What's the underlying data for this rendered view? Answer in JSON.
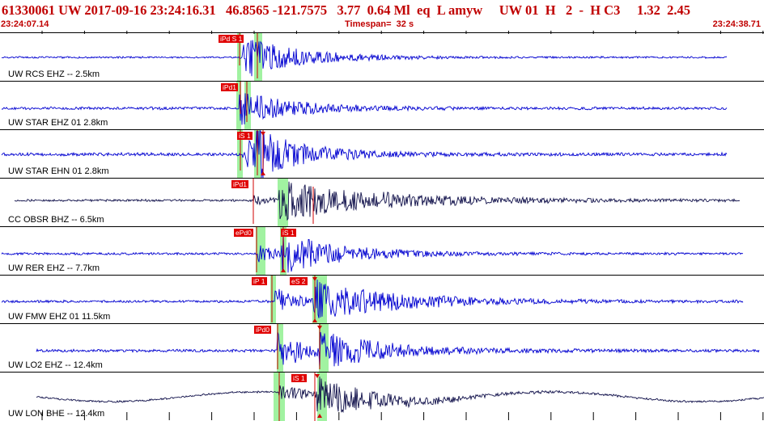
{
  "header": {
    "title": "61330061 UW 2017-09-16 23:24:16.31   46.8565 -121.7575   3.77  0.64 Ml  eq  L amyw     UW 01  H   2  -  H C3     1.32  2.45",
    "start_time": "23:24:07.14",
    "timespan": "Timespan=  32 s",
    "end_time": "23:24:38.71"
  },
  "colors": {
    "title": "#c00000",
    "trace_blue": "#0000d0",
    "trace_navy": "#10104a",
    "pick_label_bg": "#e00000",
    "pick_window": "#90f090",
    "pick_line": "#d00000"
  },
  "panels": [
    {
      "station": "UW RCS EHZ -- 2.5km",
      "color": "#0000d0",
      "picks": [
        "iPd S 1"
      ]
    },
    {
      "station": "UW STAR EHZ 01 2.8km",
      "color": "#0000d0",
      "picks": [
        "iPd1"
      ]
    },
    {
      "station": "UW STAR EHN 01 2.8km",
      "color": "#0000d0",
      "picks": [
        "iS 1"
      ]
    },
    {
      "station": "CC OBSR BHZ -- 6.5km",
      "color": "#10104a",
      "picks": [
        "iPd1"
      ]
    },
    {
      "station": "UW RER EHZ -- 7.7km",
      "color": "#0000d0",
      "picks": [
        "ePd0",
        "iS 1"
      ]
    },
    {
      "station": "UW FMW EHZ 01 11.5km",
      "color": "#0000d0",
      "picks": [
        "iP 1",
        "eS 2"
      ]
    },
    {
      "station": "UW LO2 EHZ -- 12.4km",
      "color": "#0000d0",
      "picks": [
        "iPd0"
      ]
    },
    {
      "station": "UW LON BHE -- 12.4km",
      "color": "#10104a",
      "picks": [
        "iS 1"
      ]
    }
  ]
}
